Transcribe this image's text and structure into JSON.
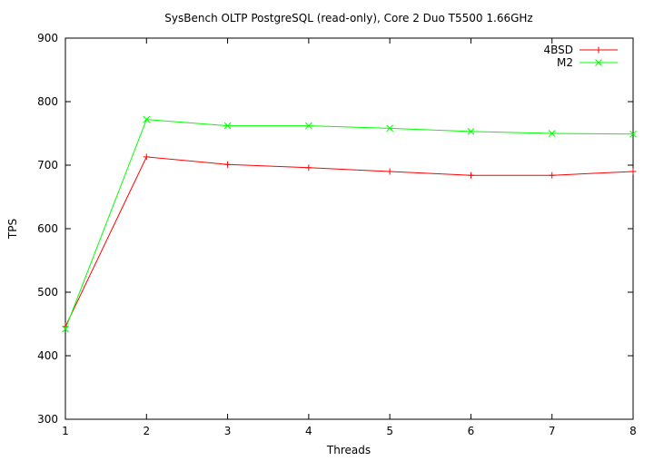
{
  "chart_data": {
    "type": "line",
    "title": "SysBench OLTP PostgreSQL (read-only), Core 2 Duo T5500 1.66GHz",
    "xlabel": "Threads",
    "ylabel": "TPS",
    "x": [
      1,
      2,
      3,
      4,
      5,
      6,
      7,
      8
    ],
    "xlim": [
      1,
      8
    ],
    "ylim": [
      300,
      900
    ],
    "xticks": [
      "1",
      "2",
      "3",
      "4",
      "5",
      "6",
      "7",
      "8"
    ],
    "yticks": [
      "300",
      "400",
      "500",
      "600",
      "700",
      "800",
      "900"
    ],
    "grid": false,
    "legend_position": "top-right",
    "series": [
      {
        "name": "4BSD",
        "color": "#ff0000",
        "marker": "plus",
        "values": [
          446,
          713,
          701,
          696,
          690,
          684,
          684,
          690
        ]
      },
      {
        "name": "M2",
        "color": "#00ff00",
        "marker": "cross",
        "values": [
          442,
          772,
          762,
          762,
          758,
          753,
          750,
          749
        ]
      }
    ]
  }
}
